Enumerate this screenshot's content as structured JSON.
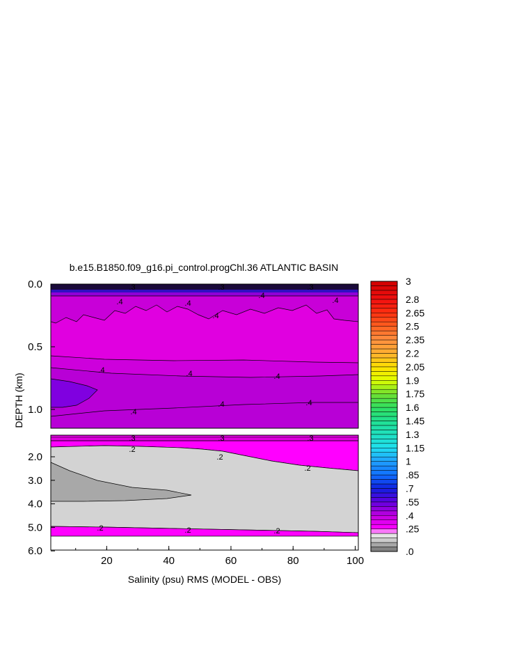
{
  "chart_data": {
    "type": "heatmap",
    "subtype": "filled-contour",
    "title": "b.e15.B1850.f09_g16.pi_control.progChl.36 ATLANTIC BASIN",
    "xlabel": "Salinity (psu) RMS (MODEL - OBS)",
    "ylabel": "DEPTH (km)",
    "xlim": [
      2,
      101
    ],
    "x_ticks": [
      "20",
      "40",
      "60",
      "80",
      "100"
    ],
    "panels": [
      {
        "name": "upper",
        "ylim": [
          0.0,
          1.15
        ],
        "y_ticks": [
          "0.0",
          "0.5",
          "1.0"
        ],
        "y_tick_values": [
          0.0,
          0.5,
          1.0
        ],
        "contour_labels": [
          ".3",
          ".3",
          ".3",
          ".4",
          ".4",
          ".4",
          ".4",
          ".4",
          ".4",
          ".4",
          ".4",
          ".4",
          ".4",
          ".4"
        ]
      },
      {
        "name": "lower",
        "ylim": [
          1.15,
          6.0
        ],
        "y_ticks": [
          "2.0",
          "3.0",
          "4.0",
          "5.0",
          "6.0"
        ],
        "y_tick_values": [
          2.0,
          3.0,
          4.0,
          5.0,
          6.0
        ],
        "contour_labels": [
          ".3",
          ".3",
          ".3",
          ".2",
          ".2",
          ".2",
          ".2",
          ".2",
          ".2"
        ]
      }
    ],
    "colorbar": {
      "tick_labels": [
        "3",
        "2.8",
        "2.65",
        "2.5",
        "2.35",
        "2.2",
        "2.05",
        "1.9",
        "1.75",
        "1.6",
        "1.45",
        "1.3",
        "1.15",
        "1",
        ".85",
        ".7",
        ".55",
        ".4",
        ".25",
        ".0"
      ],
      "tick_values": [
        3.0,
        2.8,
        2.65,
        2.5,
        2.35,
        2.2,
        2.05,
        1.9,
        1.75,
        1.6,
        1.45,
        1.3,
        1.15,
        1.0,
        0.85,
        0.7,
        0.55,
        0.4,
        0.25,
        0.0
      ],
      "range": [
        0.0,
        3.0
      ],
      "colors": {
        "red": "#e8001e",
        "orange": "#ffa020",
        "yellow": "#ffe800",
        "green": "#30d040",
        "cyan": "#20e0e0",
        "blue": "#1040ff",
        "purple": "#8000e0",
        "magenta": "#ff00ff",
        "light_gray": "#d3d3d3",
        "dark_gray": "#808080"
      }
    }
  }
}
